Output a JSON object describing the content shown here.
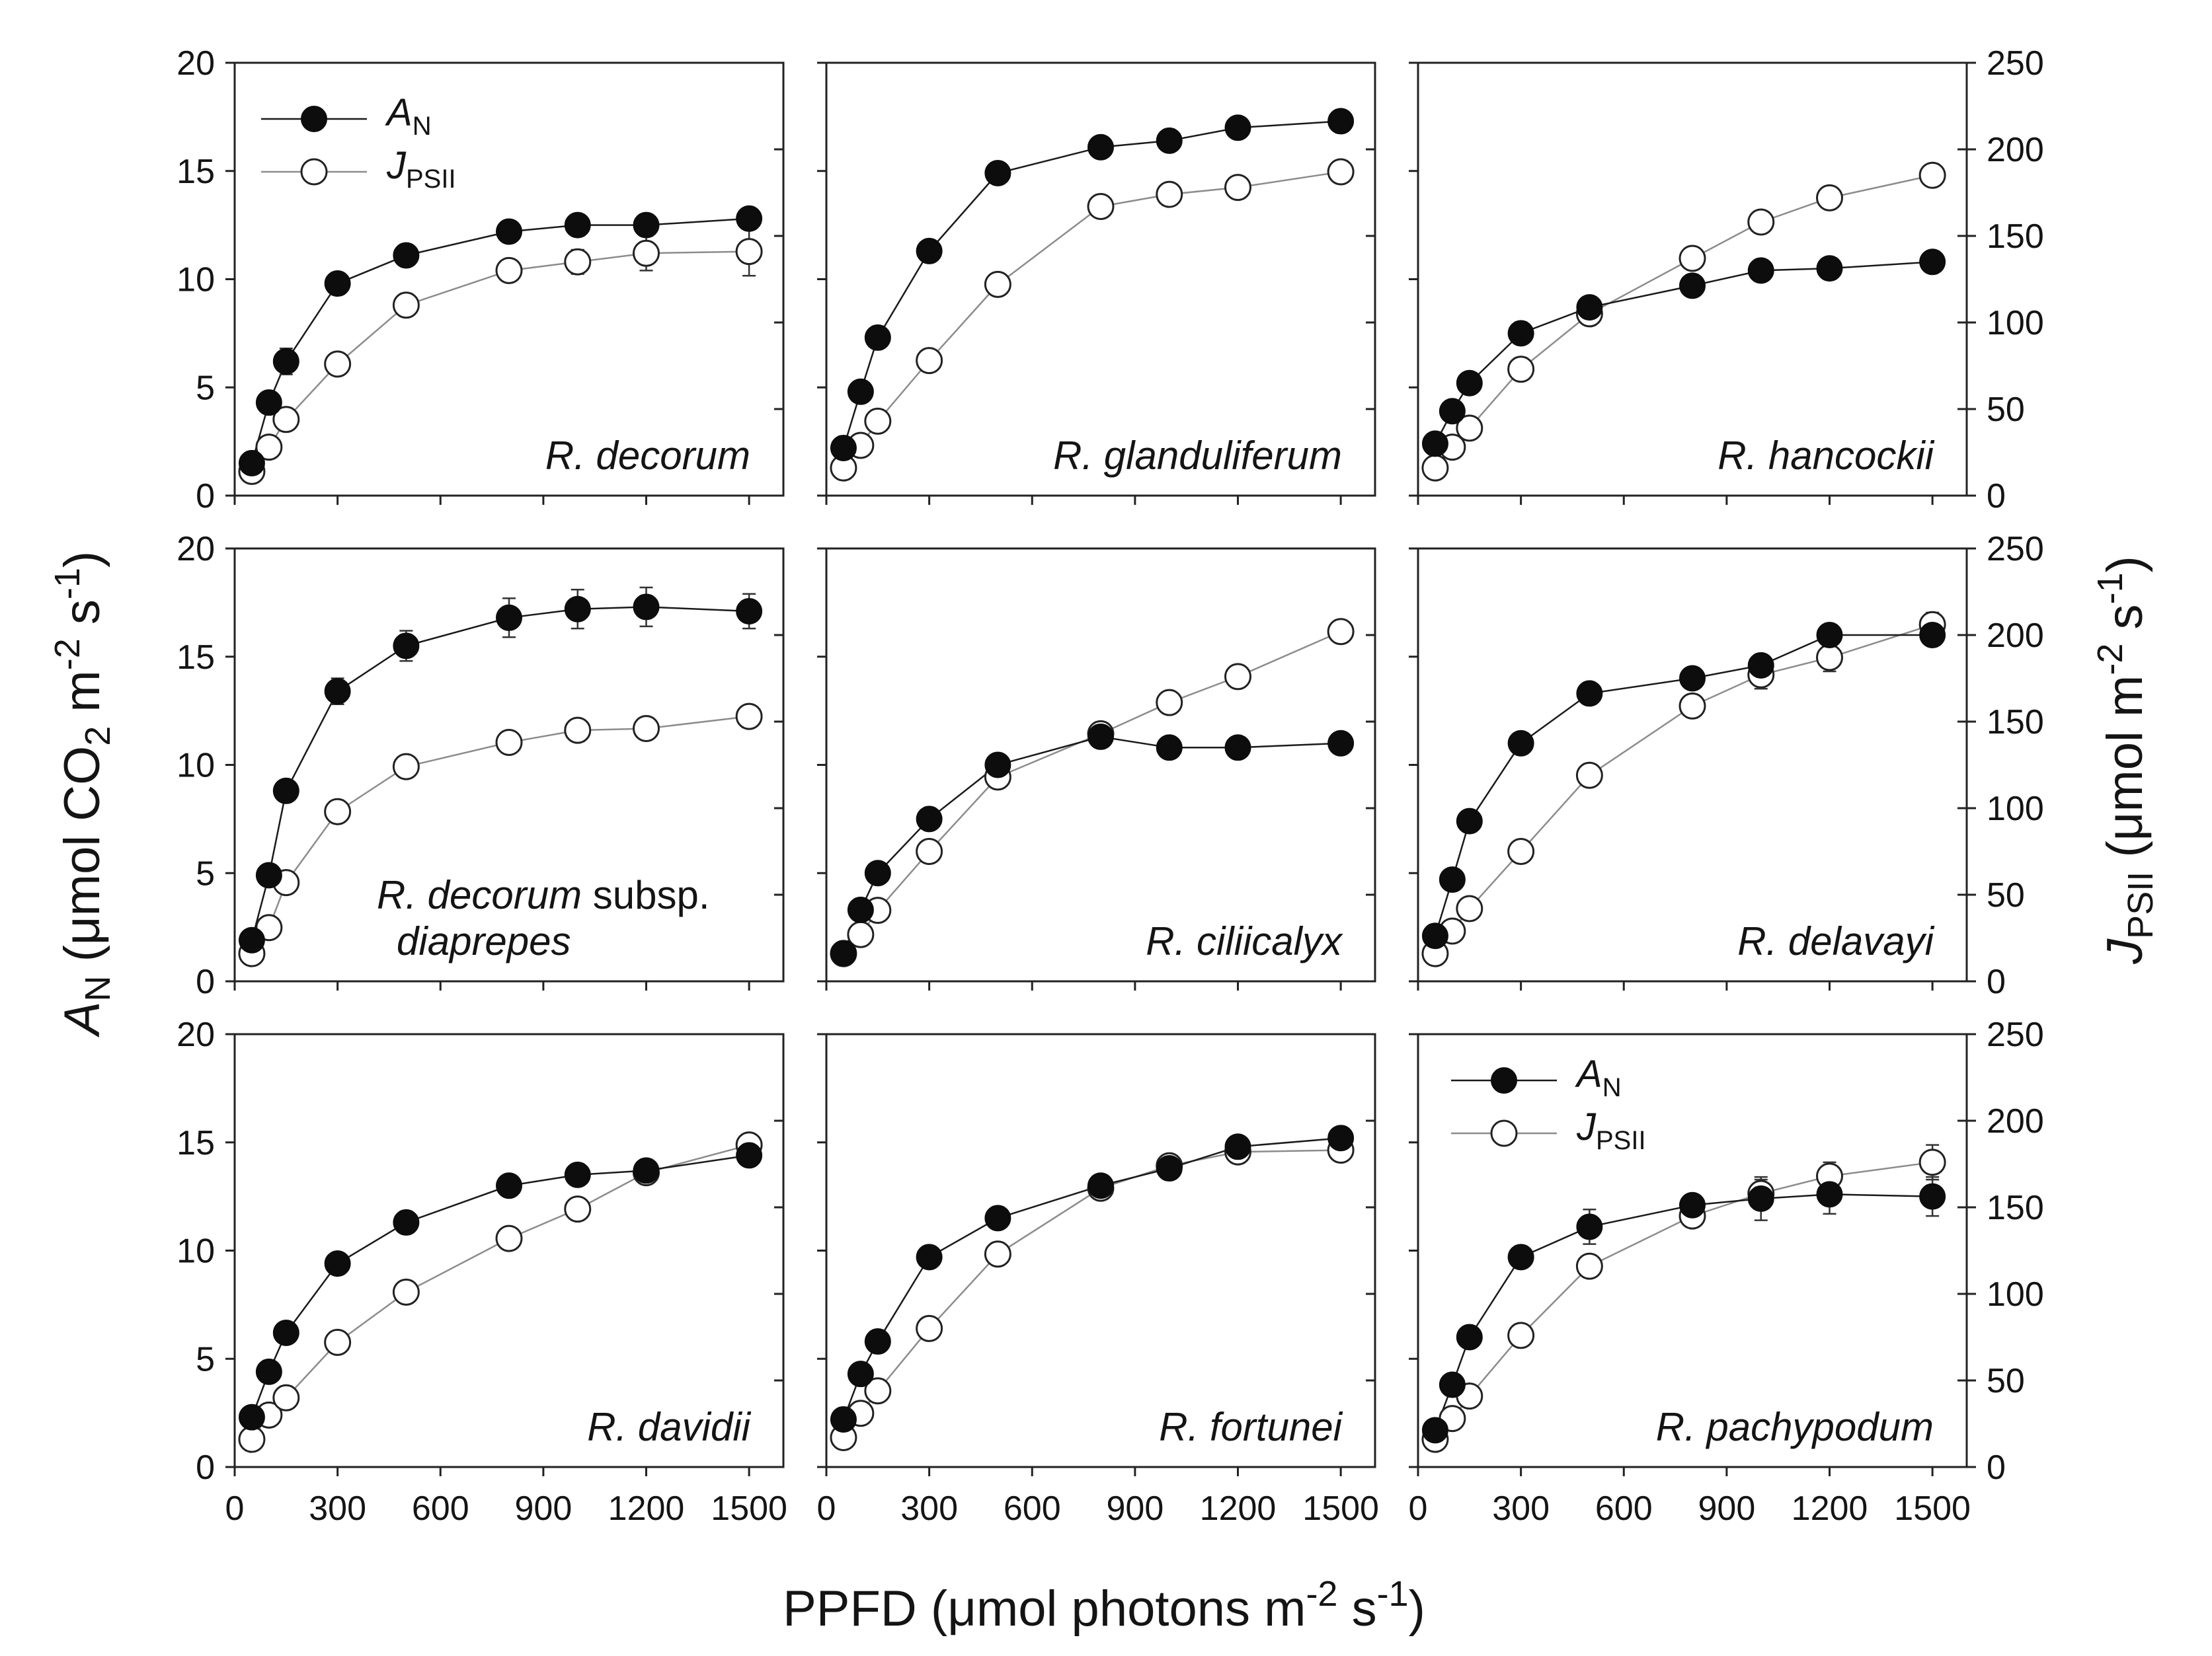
{
  "figure": {
    "x_axis_title": "PPFD (μmol photons m",
    "x_axis_title_sup": "-2",
    "x_axis_title_mid": " s",
    "x_axis_title_sup2": "-1",
    "x_axis_title_end": ")",
    "left_axis_title_A": "A",
    "left_axis_title_sub": "N",
    "left_axis_title_rest": " (μmol CO",
    "left_axis_title_sub2": "2",
    "left_axis_title_m": " m",
    "left_axis_title_sup": "-2",
    "left_axis_title_s": " s",
    "left_axis_title_sup2": "-1",
    "left_axis_title_end": ")",
    "right_axis_title_J": "J",
    "right_axis_title_sub": "PSII",
    "right_axis_title_rest": " (μmol  m",
    "right_axis_title_sup": "-2",
    "right_axis_title_s": " s",
    "right_axis_title_sup2": "-1",
    "right_axis_title_end": ")"
  },
  "legend": {
    "an_label": "A",
    "an_sub": "N",
    "jpsii_label": "J",
    "jpsii_sub": "PSII"
  },
  "chart_data": {
    "type": "scatter",
    "title": "",
    "xlabel": "PPFD (μmol photons m-2 s-1)",
    "ylabel_left": "AN (μmol CO2 m-2 s-1)",
    "ylabel_right": "JPSII (μmol m-2 s-1)",
    "xlim": [
      0,
      1600
    ],
    "ylim_left": [
      0,
      20
    ],
    "ylim_right": [
      0,
      250
    ],
    "x_ticks": [
      0,
      300,
      600,
      900,
      1200,
      1500
    ],
    "y_left_ticks": [
      0,
      5,
      10,
      15,
      20
    ],
    "y_right_ticks": [
      0,
      50,
      100,
      150,
      200,
      250
    ],
    "x": [
      50,
      100,
      150,
      300,
      500,
      800,
      1000,
      1200,
      1500
    ],
    "panels": [
      {
        "species": "R. decorum",
        "legend": true,
        "an": [
          1.5,
          4.3,
          6.2,
          9.8,
          11.1,
          12.2,
          12.5,
          12.5,
          12.8
        ],
        "an_err": [
          0.4,
          0.5,
          0.6,
          0.5,
          0.5,
          0.5,
          0.4,
          0.5,
          0.4
        ],
        "jpsii": [
          14,
          28,
          44,
          76,
          110,
          130,
          135,
          140,
          141
        ],
        "jpsii_err": [
          2,
          4,
          4,
          4,
          5,
          6,
          7,
          10,
          14
        ]
      },
      {
        "species": "R. glanduliferum",
        "an": [
          2.2,
          4.8,
          7.3,
          11.3,
          14.9,
          16.1,
          16.4,
          17.0,
          17.3
        ],
        "an_err": [
          0,
          0,
          0,
          0,
          0,
          0,
          0,
          0,
          0
        ],
        "jpsii": [
          16,
          29,
          43,
          78,
          122,
          167,
          174,
          178,
          187
        ],
        "jpsii_err": [
          0,
          0,
          0,
          0,
          0,
          0,
          0,
          0,
          6
        ]
      },
      {
        "species": "R. hancockii",
        "an": [
          2.4,
          3.9,
          5.2,
          7.5,
          8.7,
          9.7,
          10.4,
          10.5,
          10.8
        ],
        "an_err": [
          0,
          0,
          0,
          0,
          0,
          0,
          0,
          0,
          0
        ],
        "jpsii": [
          16,
          28,
          39,
          73,
          105,
          137,
          158,
          172,
          185
        ],
        "jpsii_err": [
          0,
          0,
          0,
          0,
          0,
          0,
          0,
          0,
          0
        ]
      },
      {
        "species": "R. decorum",
        "species_extra": "subsp.",
        "species_line2": "diaprepes",
        "an": [
          1.9,
          4.9,
          8.8,
          13.4,
          15.5,
          16.8,
          17.2,
          17.3,
          17.1
        ],
        "an_err": [
          0,
          0,
          0,
          0.6,
          0.7,
          0.9,
          0.9,
          0.9,
          0.8
        ],
        "jpsii": [
          16,
          31,
          57,
          98,
          124,
          138,
          145,
          146,
          153
        ],
        "jpsii_err": [
          0,
          0,
          0,
          0,
          0,
          0,
          0,
          0,
          0
        ]
      },
      {
        "species": "R. ciliicalyx",
        "an": [
          1.3,
          3.3,
          5.0,
          7.5,
          10.0,
          11.3,
          10.8,
          10.8,
          11.0
        ],
        "an_err": [
          0,
          0,
          0,
          0,
          0,
          0,
          0,
          0,
          0
        ],
        "jpsii": [
          16,
          27,
          41,
          75,
          118,
          143,
          161,
          176,
          202
        ],
        "jpsii_err": [
          0,
          0,
          0,
          0,
          0,
          0,
          0,
          0,
          0
        ]
      },
      {
        "species": "R. delavayi",
        "an": [
          2.1,
          4.7,
          7.4,
          11.0,
          13.3,
          14.0,
          14.6,
          16.0,
          16.0
        ],
        "an_err": [
          0,
          0,
          0,
          0,
          0,
          0,
          0,
          0,
          0
        ],
        "jpsii": [
          16,
          29,
          42,
          75,
          119,
          159,
          177,
          187,
          206
        ],
        "jpsii_err": [
          0,
          0,
          0,
          0,
          0,
          5,
          8,
          8,
          7
        ]
      },
      {
        "species": "R. davidii",
        "an": [
          2.3,
          4.4,
          6.2,
          9.4,
          11.3,
          13.0,
          13.5,
          13.7,
          14.4
        ],
        "an_err": [
          0,
          0,
          0,
          0,
          0,
          0,
          0,
          0,
          0
        ],
        "jpsii": [
          16,
          30,
          40,
          72,
          101,
          132,
          149,
          170,
          186
        ],
        "jpsii_err": [
          0,
          0,
          0,
          0,
          0,
          0,
          0,
          0,
          0
        ]
      },
      {
        "species": "R. fortunei",
        "an": [
          2.2,
          4.3,
          5.8,
          9.7,
          11.5,
          13.0,
          13.8,
          14.8,
          15.2
        ],
        "an_err": [
          0,
          0,
          0,
          0,
          0,
          0,
          0,
          0,
          0
        ],
        "jpsii": [
          17,
          31,
          44,
          80,
          123,
          161,
          174,
          182,
          183
        ],
        "jpsii_err": [
          0,
          0,
          0,
          0,
          0,
          0,
          0,
          0,
          0
        ]
      },
      {
        "species": "R. pachypodum",
        "legend": true,
        "an": [
          1.7,
          3.8,
          6.0,
          9.7,
          11.1,
          12.1,
          12.4,
          12.6,
          12.5
        ],
        "an_err": [
          0,
          0,
          0,
          0.5,
          0.8,
          0.5,
          1.0,
          0.9,
          0.9
        ],
        "jpsii": [
          16,
          28,
          41,
          76,
          116,
          145,
          158,
          168,
          176
        ],
        "jpsii_err": [
          0,
          0,
          0,
          0,
          0,
          6,
          8,
          8,
          10
        ]
      }
    ]
  }
}
